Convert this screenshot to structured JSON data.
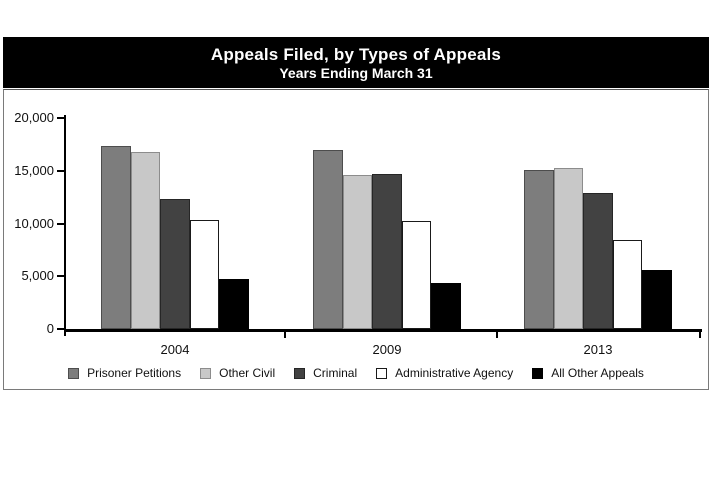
{
  "chart_data": {
    "type": "bar",
    "title": "Appeals Filed, by Types of Appeals",
    "subtitle": "Years Ending March 31",
    "categories": [
      "2004",
      "2009",
      "2013"
    ],
    "series": [
      {
        "name": "Prisoner Petitions",
        "color": "#7d7d7d",
        "border": "#4d4d4d",
        "values": [
          17300,
          17000,
          15100
        ]
      },
      {
        "name": "Other Civil",
        "color": "#c8c8c8",
        "border": "#8c8c8c",
        "values": [
          16800,
          14600,
          15300
        ]
      },
      {
        "name": "Criminal",
        "color": "#424242",
        "border": "#262626",
        "values": [
          12300,
          14700,
          12900
        ]
      },
      {
        "name": "Administrative Agency",
        "color": "#ffffff",
        "border": "#1a1a1a",
        "values": [
          10300,
          10200,
          8400
        ]
      },
      {
        "name": "All Other Appeals",
        "color": "#000000",
        "border": "#000000",
        "values": [
          4700,
          4400,
          5600
        ]
      }
    ],
    "ylim": [
      0,
      20000
    ],
    "yticks": [
      0,
      5000,
      10000,
      15000,
      20000
    ],
    "ytick_labels": [
      "0",
      "5,000",
      "10,000",
      "15,000",
      "20,000"
    ],
    "xlabel": "",
    "ylabel": "",
    "grid": false,
    "legend_position": "bottom",
    "colors": {
      "title_band_bg": "#000000",
      "title_text": "#ffffff",
      "axis": "#000000",
      "panel_border": "#7a7a7a"
    }
  }
}
